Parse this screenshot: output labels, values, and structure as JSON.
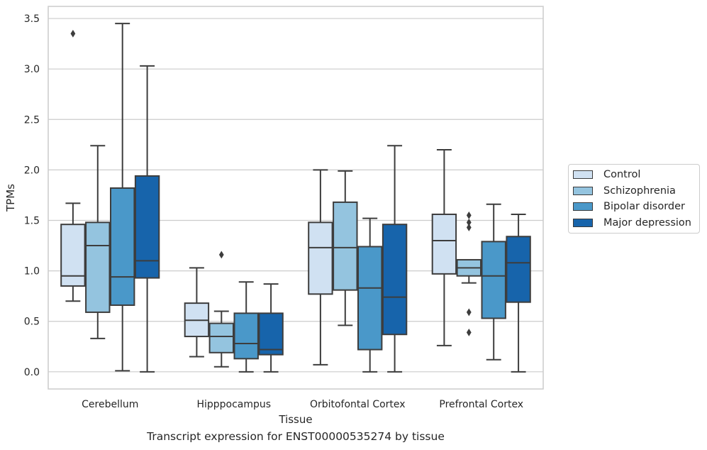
{
  "caption": "Transcript expression for ENST00000535274 by tissue",
  "chart_data": {
    "type": "box",
    "xlabel": "Tissue",
    "ylabel": "TPMs",
    "ylim": [
      -0.17,
      3.62
    ],
    "yticks": [
      "0.0",
      "0.5",
      "1.0",
      "1.5",
      "2.0",
      "2.5",
      "3.0",
      "3.5"
    ],
    "grid": true,
    "legend_position": "right",
    "categories": [
      "Cerebellum",
      "Hipppocampus",
      "Orbitofontal Cortex",
      "Prefrontal Cortex"
    ],
    "series": [
      {
        "name": "Control",
        "color": "#d0e1f2",
        "boxes": [
          {
            "whisker_low": 0.7,
            "q1": 0.85,
            "median": 0.95,
            "q3": 1.46,
            "whisker_high": 1.67,
            "outliers": [
              3.35
            ]
          },
          {
            "whisker_low": 0.15,
            "q1": 0.35,
            "median": 0.51,
            "q3": 0.68,
            "whisker_high": 1.03,
            "outliers": []
          },
          {
            "whisker_low": 0.07,
            "q1": 0.77,
            "median": 1.23,
            "q3": 1.48,
            "whisker_high": 2.0,
            "outliers": []
          },
          {
            "whisker_low": 0.26,
            "q1": 0.97,
            "median": 1.3,
            "q3": 1.56,
            "whisker_high": 2.2,
            "outliers": []
          }
        ]
      },
      {
        "name": "Schizophrenia",
        "color": "#94c4df",
        "boxes": [
          {
            "whisker_low": 0.33,
            "q1": 0.59,
            "median": 1.25,
            "q3": 1.48,
            "whisker_high": 2.24,
            "outliers": []
          },
          {
            "whisker_low": 0.05,
            "q1": 0.19,
            "median": 0.35,
            "q3": 0.48,
            "whisker_high": 0.6,
            "outliers": [
              1.16
            ]
          },
          {
            "whisker_low": 0.46,
            "q1": 0.81,
            "median": 1.23,
            "q3": 1.68,
            "whisker_high": 1.99,
            "outliers": []
          },
          {
            "whisker_low": 0.88,
            "q1": 0.95,
            "median": 1.03,
            "q3": 1.11,
            "whisker_high": 1.11,
            "outliers": [
              1.55,
              1.48,
              1.43,
              0.59,
              0.39
            ]
          }
        ]
      },
      {
        "name": "Bipolar disorder",
        "color": "#4a98c9",
        "boxes": [
          {
            "whisker_low": 0.01,
            "q1": 0.66,
            "median": 0.94,
            "q3": 1.82,
            "whisker_high": 3.45,
            "outliers": []
          },
          {
            "whisker_low": 0.0,
            "q1": 0.13,
            "median": 0.28,
            "q3": 0.58,
            "whisker_high": 0.89,
            "outliers": []
          },
          {
            "whisker_low": 0.0,
            "q1": 0.22,
            "median": 0.83,
            "q3": 1.24,
            "whisker_high": 1.52,
            "outliers": []
          },
          {
            "whisker_low": 0.12,
            "q1": 0.53,
            "median": 0.95,
            "q3": 1.29,
            "whisker_high": 1.66,
            "outliers": []
          }
        ]
      },
      {
        "name": "Major depression",
        "color": "#1764ab",
        "boxes": [
          {
            "whisker_low": 0.0,
            "q1": 0.93,
            "median": 1.1,
            "q3": 1.94,
            "whisker_high": 3.03,
            "outliers": []
          },
          {
            "whisker_low": 0.0,
            "q1": 0.17,
            "median": 0.22,
            "q3": 0.58,
            "whisker_high": 0.87,
            "outliers": []
          },
          {
            "whisker_low": 0.0,
            "q1": 0.37,
            "median": 0.74,
            "q3": 1.46,
            "whisker_high": 2.24,
            "outliers": []
          },
          {
            "whisker_low": 0.0,
            "q1": 0.69,
            "median": 1.08,
            "q3": 1.34,
            "whisker_high": 1.56,
            "outliers": []
          }
        ]
      }
    ]
  }
}
